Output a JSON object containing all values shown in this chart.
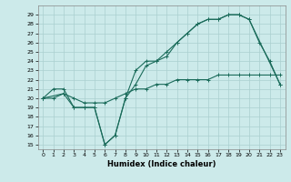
{
  "xlabel": "Humidex (Indice chaleur)",
  "bg_color": "#cceaea",
  "grid_color": "#aacfcf",
  "line_color": "#1a6b5a",
  "xlim": [
    -0.5,
    23.5
  ],
  "ylim": [
    14.5,
    30.0
  ],
  "xticks": [
    0,
    1,
    2,
    3,
    4,
    5,
    6,
    7,
    8,
    9,
    10,
    11,
    12,
    13,
    14,
    15,
    16,
    17,
    18,
    19,
    20,
    21,
    22,
    23
  ],
  "yticks": [
    15,
    16,
    17,
    18,
    19,
    20,
    21,
    22,
    23,
    24,
    25,
    26,
    27,
    28,
    29
  ],
  "line1_x": [
    0,
    1,
    2,
    3,
    4,
    5,
    6,
    7,
    8,
    9,
    10,
    11,
    12,
    13,
    14,
    15,
    16,
    17,
    18,
    19,
    20,
    21,
    22,
    23
  ],
  "line1_y": [
    20,
    21,
    21,
    19,
    19,
    19,
    15,
    16,
    20,
    23,
    24,
    24,
    25,
    26,
    27,
    28,
    28.5,
    28.5,
    29,
    29,
    28.5,
    26,
    24,
    21.5
  ],
  "line2_x": [
    0,
    2,
    3,
    4,
    5,
    6,
    7,
    8,
    9,
    10,
    11,
    12,
    13,
    14,
    15,
    16,
    17,
    18,
    19,
    20,
    23
  ],
  "line2_y": [
    20,
    20.5,
    19,
    19,
    19,
    15,
    16,
    20,
    21.5,
    23.5,
    24,
    24.5,
    26,
    27,
    28,
    28.5,
    28.5,
    29,
    29,
    28.5,
    21.5
  ],
  "line3_x": [
    0,
    1,
    2,
    3,
    4,
    5,
    6,
    7,
    8,
    9,
    10,
    11,
    12,
    13,
    14,
    15,
    16,
    17,
    18,
    19,
    20,
    21,
    22,
    23
  ],
  "line3_y": [
    20,
    20,
    20.5,
    20,
    19.5,
    19.5,
    19.5,
    20,
    20.5,
    21,
    21,
    21.5,
    21.5,
    22,
    22,
    22,
    22,
    22.5,
    22.5,
    22.5,
    22.5,
    22.5,
    22.5,
    22.5
  ]
}
